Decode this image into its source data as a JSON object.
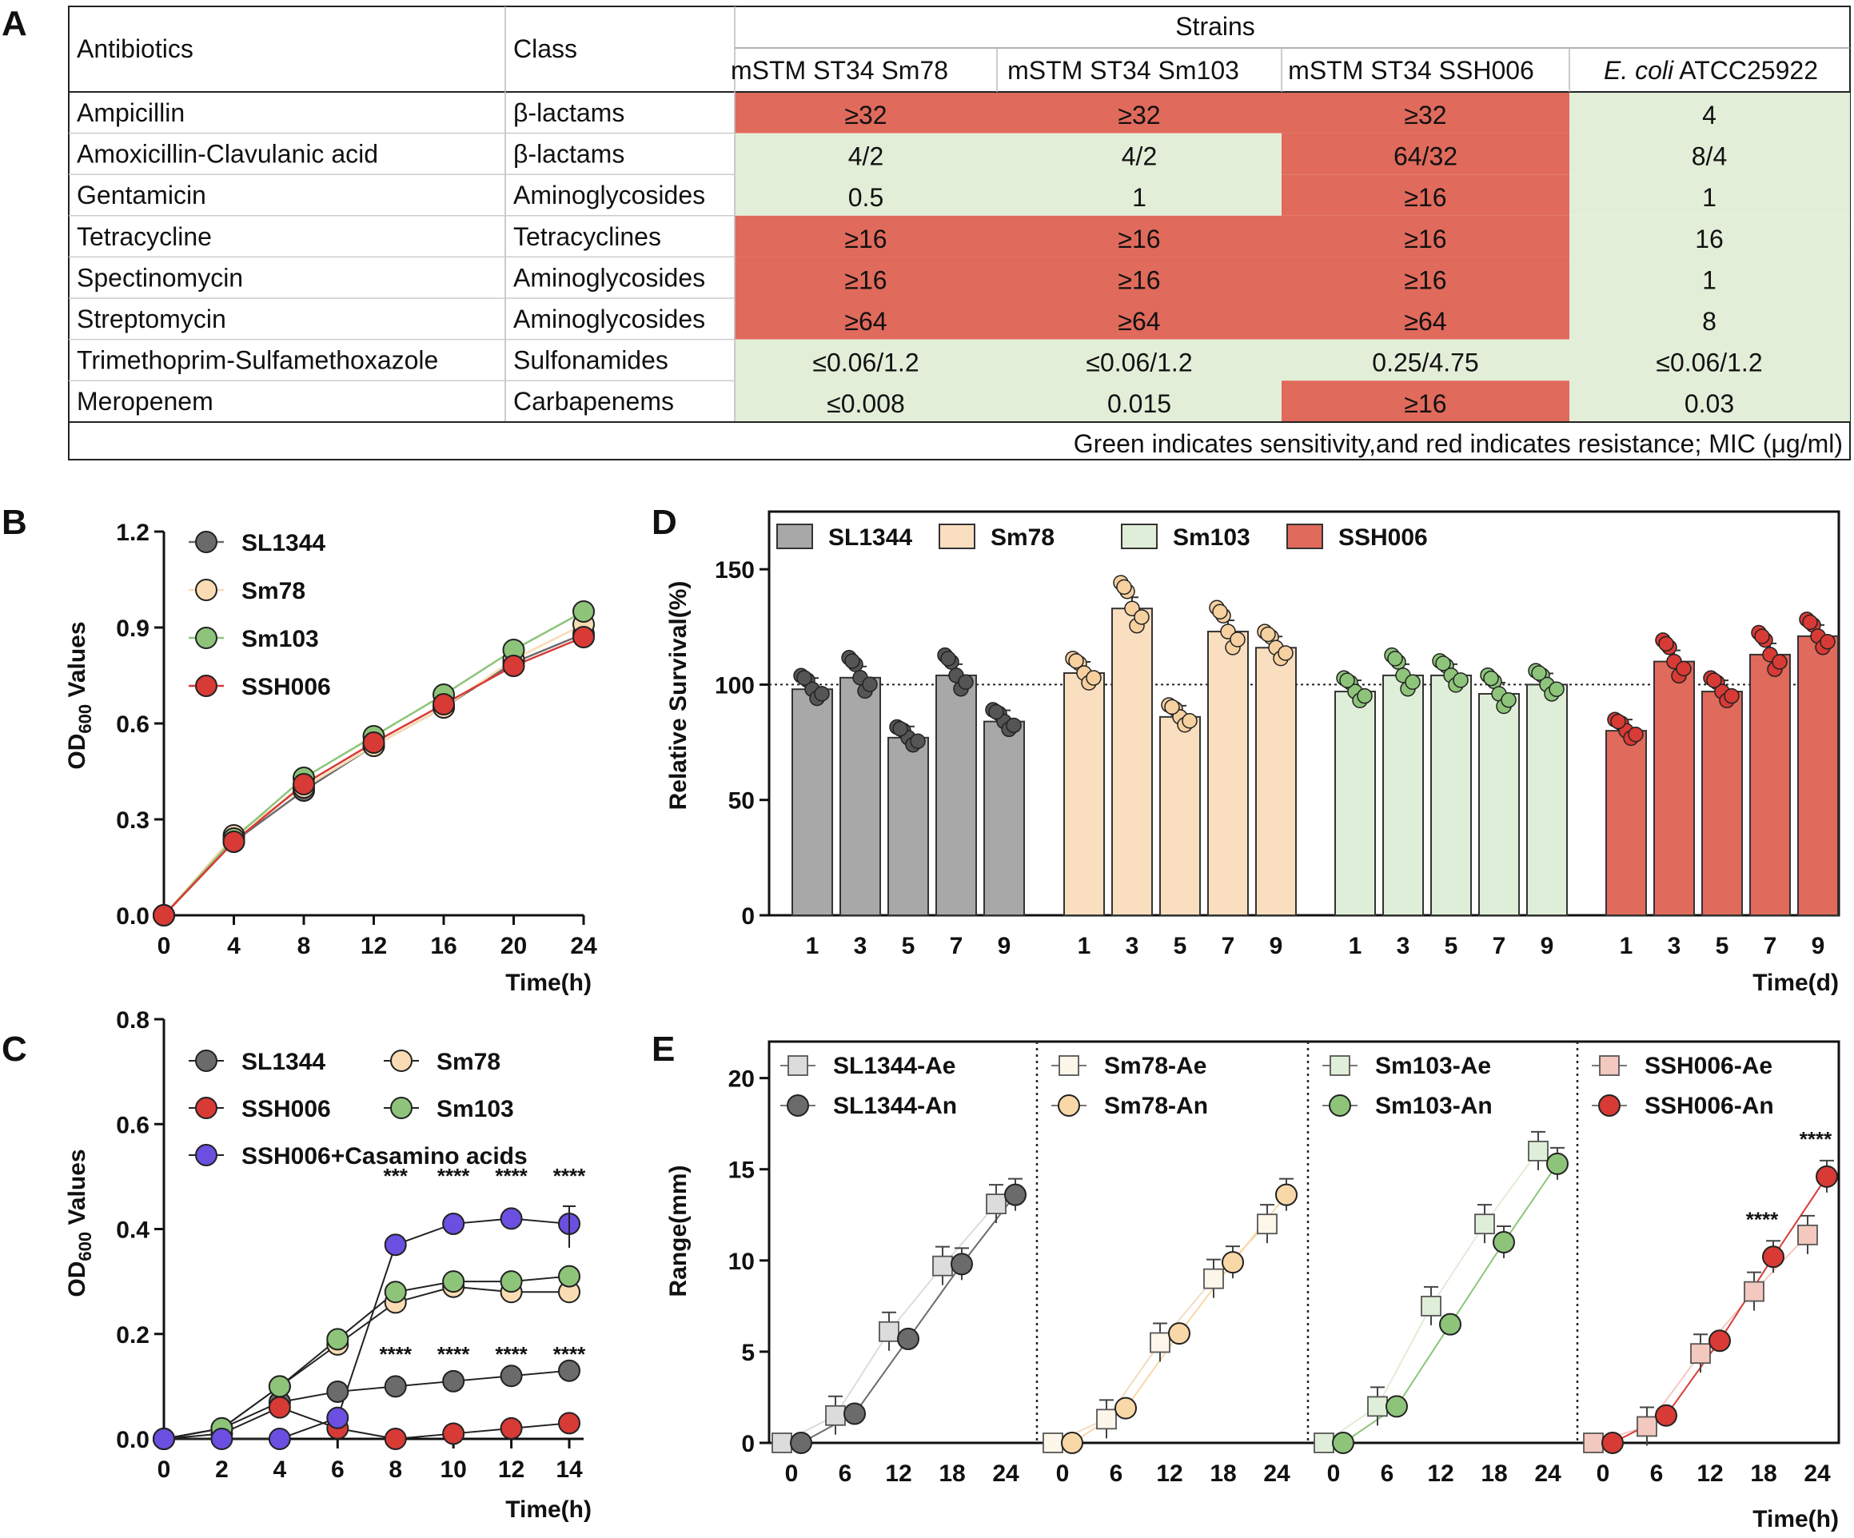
{
  "panel_labels": {
    "a": "A",
    "b": "B",
    "c": "C",
    "d": "D",
    "e": "E"
  },
  "colors": {
    "resistant": "#e06a5b",
    "sensitive": "#e3eed9",
    "SL1344": "#6b6b6b",
    "Sm78": "#f9dcb3",
    "Sm103": "#8dc47a",
    "SSH006": "#d83a35",
    "casamino": "#6a4fe0"
  },
  "table": {
    "headers": {
      "antibiotics": "Antibiotics",
      "class": "Class",
      "strains": "Strains"
    },
    "strain_cols": [
      {
        "label": "mSTM ST34 Sm78"
      },
      {
        "label": "mSTM ST34 Sm103"
      },
      {
        "label": "mSTM ST34 SSH006"
      },
      {
        "label_italic": "E. coli",
        "label_rest": " ATCC25922"
      }
    ],
    "rows": [
      {
        "antibiotic": "Ampicillin",
        "class": "β-lactams",
        "values": [
          "≥32",
          "≥32",
          "≥32",
          "4"
        ],
        "resistant": [
          true,
          true,
          true,
          false
        ]
      },
      {
        "antibiotic": "Amoxicillin-Clavulanic acid",
        "class": "β-lactams",
        "values": [
          "4/2",
          "4/2",
          "64/32",
          "8/4"
        ],
        "resistant": [
          false,
          false,
          true,
          false
        ]
      },
      {
        "antibiotic": "Gentamicin",
        "class": "Aminoglycosides",
        "values": [
          "0.5",
          "1",
          "≥16",
          "1"
        ],
        "resistant": [
          false,
          false,
          true,
          false
        ]
      },
      {
        "antibiotic": "Tetracycline",
        "class": "Tetracyclines",
        "values": [
          "≥16",
          "≥16",
          "≥16",
          "16"
        ],
        "resistant": [
          true,
          true,
          true,
          false
        ]
      },
      {
        "antibiotic": "Spectinomycin",
        "class": "Aminoglycosides",
        "values": [
          "≥16",
          "≥16",
          "≥16",
          "1"
        ],
        "resistant": [
          true,
          true,
          true,
          false
        ]
      },
      {
        "antibiotic": "Streptomycin",
        "class": "Aminoglycosides",
        "values": [
          "≥64",
          "≥64",
          "≥64",
          "8"
        ],
        "resistant": [
          true,
          true,
          true,
          false
        ]
      },
      {
        "antibiotic": "Trimethoprim-Sulfamethoxazole",
        "class": "Sulfonamides",
        "values": [
          "≤0.06/1.2",
          "≤0.06/1.2",
          "0.25/4.75",
          "≤0.06/1.2"
        ],
        "resistant": [
          false,
          false,
          false,
          false
        ]
      },
      {
        "antibiotic": "Meropenem",
        "class": "Carbapenems",
        "values": [
          "≤0.008",
          "0.015",
          "≥16",
          "0.03"
        ],
        "resistant": [
          false,
          false,
          true,
          false
        ]
      }
    ],
    "footnote": "Green indicates sensitivity,and red indicates resistance; MIC (μg/ml)"
  },
  "chart_data": [
    {
      "id": "B",
      "type": "line",
      "ylabel": "OD600 Values",
      "xlabel": "Time(h)",
      "ylim": [
        0,
        1.2
      ],
      "yticks": [
        "0.0",
        "0.3",
        "0.6",
        "0.9",
        "1.2"
      ],
      "x": [
        0,
        4,
        8,
        12,
        16,
        20,
        24
      ],
      "series": [
        {
          "name": "SL1344",
          "color": "#6b6b6b",
          "values": [
            0.0,
            0.23,
            0.39,
            0.53,
            0.65,
            0.79,
            0.88
          ]
        },
        {
          "name": "Sm78",
          "color": "#f9dcb3",
          "values": [
            0.0,
            0.25,
            0.4,
            0.53,
            0.65,
            0.8,
            0.91
          ]
        },
        {
          "name": "Sm103",
          "color": "#8dc47a",
          "values": [
            0.0,
            0.24,
            0.43,
            0.56,
            0.69,
            0.83,
            0.95
          ]
        },
        {
          "name": "SSH006",
          "color": "#d83a35",
          "values": [
            0.0,
            0.23,
            0.41,
            0.54,
            0.66,
            0.78,
            0.87
          ]
        }
      ]
    },
    {
      "id": "C",
      "type": "line",
      "ylabel": "OD600 Values",
      "xlabel": "Time(h)",
      "ylim": [
        0,
        0.8
      ],
      "yticks": [
        "0.0",
        "0.2",
        "0.4",
        "0.6",
        "0.8"
      ],
      "x": [
        0,
        2,
        4,
        6,
        8,
        10,
        12,
        14
      ],
      "series": [
        {
          "name": "SL1344",
          "color": "#6b6b6b",
          "values": [
            0.0,
            0.02,
            0.07,
            0.09,
            0.1,
            0.11,
            0.12,
            0.13
          ]
        },
        {
          "name": "Sm78",
          "color": "#f9dcb3",
          "values": [
            0.0,
            0.02,
            0.1,
            0.18,
            0.26,
            0.29,
            0.28,
            0.28
          ]
        },
        {
          "name": "SSH006",
          "color": "#d83a35",
          "values": [
            0.0,
            0.01,
            0.06,
            0.02,
            0.0,
            0.01,
            0.02,
            0.03
          ]
        },
        {
          "name": "Sm103",
          "color": "#8dc47a",
          "values": [
            0.0,
            0.02,
            0.1,
            0.19,
            0.28,
            0.3,
            0.3,
            0.31
          ]
        },
        {
          "name": "SSH006+Casamino acids",
          "color": "#6a4fe0",
          "values": [
            0.0,
            0.0,
            0.0,
            0.04,
            0.37,
            0.41,
            0.42,
            0.41
          ]
        }
      ],
      "sig_upper": [
        "***",
        "****",
        "****",
        "****"
      ],
      "sig_lower": [
        "****",
        "****",
        "****",
        "****"
      ],
      "sig_x": [
        8,
        10,
        12,
        14
      ]
    },
    {
      "id": "D",
      "type": "bar",
      "ylabel": "Relative Survival(%)",
      "xlabel": "Time(d)",
      "ylim": [
        0,
        175
      ],
      "yticks": [
        "0",
        "50",
        "100",
        "150"
      ],
      "reference_line": 100,
      "categories": [
        "1",
        "3",
        "5",
        "7",
        "9"
      ],
      "series": [
        {
          "name": "SL1344",
          "color": "#a8a8a8",
          "dot": "#555555",
          "values": [
            98,
            103,
            77,
            104,
            84
          ]
        },
        {
          "name": "Sm78",
          "color": "#f9dfc0",
          "dot": "#f7d0a0",
          "values": [
            105,
            133,
            86,
            123,
            116
          ]
        },
        {
          "name": "Sm103",
          "color": "#dfeed8",
          "dot": "#8dc47a",
          "values": [
            97,
            104,
            104,
            96,
            100
          ]
        },
        {
          "name": "SSH006",
          "color": "#e06a5b",
          "dot": "#d83a35",
          "values": [
            80,
            110,
            97,
            113,
            121
          ]
        }
      ]
    },
    {
      "id": "E",
      "type": "line",
      "ylabel": "Range(mm)",
      "xlabel": "Time(h)",
      "ylim": [
        0,
        22
      ],
      "yticks": [
        "0",
        "5",
        "10",
        "15",
        "20"
      ],
      "x": [
        0,
        6,
        12,
        18,
        24
      ],
      "groups": [
        {
          "ae": {
            "name": "SL1344-Ae",
            "fill": "#dcdcdc",
            "values": [
              0,
              1.5,
              6.1,
              9.7,
              13.1
            ]
          },
          "an": {
            "name": "SL1344-An",
            "fill": "#6b6b6b",
            "values": [
              0,
              1.6,
              5.7,
              9.8,
              13.6
            ]
          }
        },
        {
          "ae": {
            "name": "Sm78-Ae",
            "fill": "#fdf6ea",
            "values": [
              0,
              1.3,
              5.5,
              9.0,
              12.0
            ]
          },
          "an": {
            "name": "Sm78-An",
            "fill": "#f9d8a8",
            "values": [
              0,
              1.9,
              6.0,
              9.9,
              13.6
            ]
          }
        },
        {
          "ae": {
            "name": "Sm103-Ae",
            "fill": "#dfeed8",
            "values": [
              0,
              2.0,
              7.5,
              12.0,
              16.0
            ]
          },
          "an": {
            "name": "Sm103-An",
            "fill": "#8dc47a",
            "values": [
              0,
              2.0,
              6.5,
              11.0,
              15.3
            ]
          }
        },
        {
          "ae": {
            "name": "SSH006-Ae",
            "fill": "#f3c8bf",
            "values": [
              0,
              0.9,
              4.9,
              8.3,
              11.4
            ]
          },
          "an": {
            "name": "SSH006-An",
            "fill": "#d83a35",
            "values": [
              0,
              1.5,
              5.6,
              10.2,
              14.6
            ]
          }
        }
      ],
      "sig": [
        {
          "group": 3,
          "x": 18,
          "label": "****"
        },
        {
          "group": 3,
          "x": 24,
          "label": "****"
        }
      ]
    }
  ]
}
